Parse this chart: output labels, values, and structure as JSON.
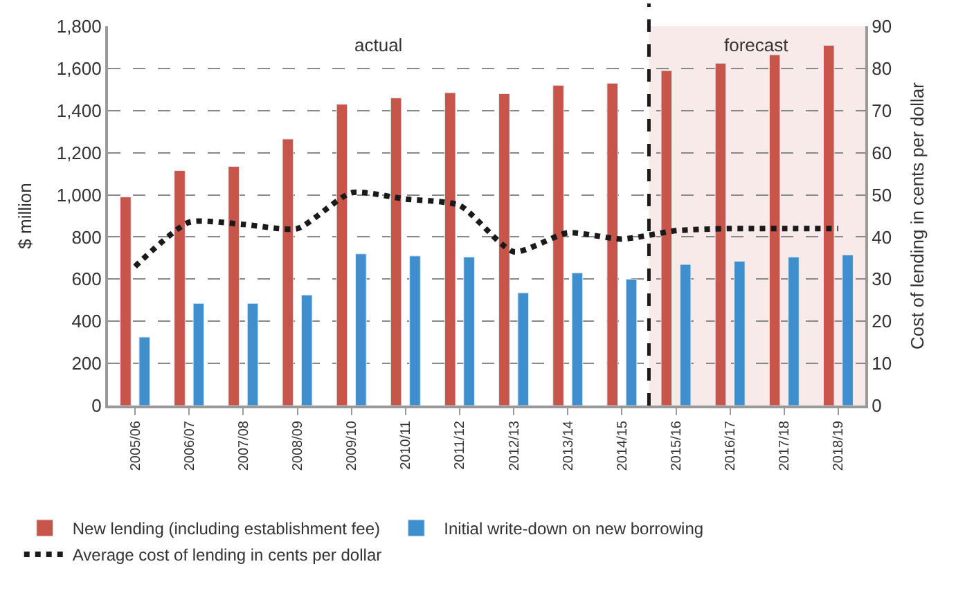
{
  "chart_data": {
    "type": "bar",
    "categories": [
      "2005/06",
      "2006/07",
      "2007/08",
      "2008/09",
      "2009/10",
      "2010/11",
      "2011/12",
      "2012/13",
      "2013/14",
      "2014/15",
      "2015/16",
      "2016/17",
      "2017/18",
      "2018/19"
    ],
    "series": [
      {
        "name": "New lending (including establishment fee)",
        "color": "#c8554a",
        "values": [
          990,
          1115,
          1135,
          1265,
          1430,
          1460,
          1485,
          1480,
          1520,
          1530,
          1590,
          1625,
          1665,
          1710
        ]
      },
      {
        "name": "Initial write-down on new borrowing",
        "color": "#3f8fcf",
        "values": [
          325,
          485,
          485,
          525,
          720,
          710,
          705,
          535,
          630,
          600,
          670,
          685,
          705,
          715
        ]
      },
      {
        "name": "Average cost of lending in cents per dollar",
        "type": "line",
        "axis": "y2",
        "color": "#1a1a1a",
        "line_style": "dotted",
        "values": [
          33,
          43.5,
          43,
          42,
          50.5,
          49,
          47.5,
          36.5,
          41,
          39.5,
          41.5,
          42,
          42,
          42
        ]
      }
    ],
    "ylabel": "$ million",
    "y2label": "Cost of lending in cents per dollar",
    "ylim": [
      0,
      1800
    ],
    "yticks": [
      {
        "value": 0,
        "label": "0"
      },
      {
        "value": 200,
        "label": "200"
      },
      {
        "value": 400,
        "label": "400"
      },
      {
        "value": 600,
        "label": "600"
      },
      {
        "value": 800,
        "label": "800"
      },
      {
        "value": 1000,
        "label": "1,000"
      },
      {
        "value": 1200,
        "label": "1,200"
      },
      {
        "value": 1400,
        "label": "1,400"
      },
      {
        "value": 1600,
        "label": "1,600"
      },
      {
        "value": 1800,
        "label": "1,800"
      }
    ],
    "y2lim": [
      0,
      90
    ],
    "y2ticks": [
      0,
      10,
      20,
      30,
      40,
      50,
      60,
      70,
      80,
      90
    ],
    "bands": [
      {
        "axis": "x",
        "from": "2015/16",
        "to": "2018/19",
        "label": "forecast",
        "color": "#f9eaea"
      }
    ],
    "annotations": [
      "actual"
    ],
    "ref_lines": [
      {
        "axis": "x",
        "value": "2015/16",
        "color": "#1a1a1a",
        "line_style": "dashed"
      }
    ],
    "grid": "y",
    "legend": "bottom"
  }
}
